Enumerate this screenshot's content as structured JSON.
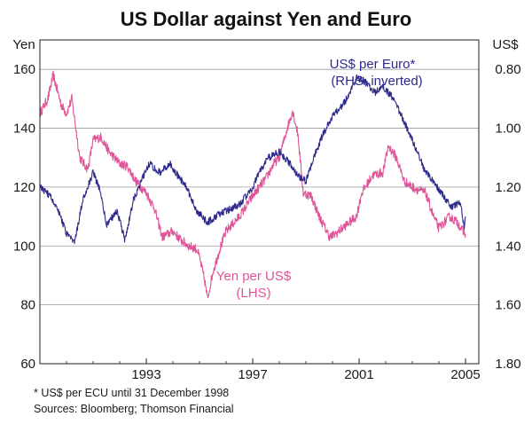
{
  "chart_data": {
    "type": "line",
    "title": "US Dollar against Yen and Euro",
    "left_axis": {
      "unit": "Yen",
      "min": 60,
      "max": 170,
      "ticks": [
        60,
        80,
        100,
        120,
        140,
        160
      ],
      "tick_labels": [
        "60",
        "80",
        "100",
        "120",
        "140",
        "160"
      ]
    },
    "right_axis": {
      "unit": "US$",
      "inverted": true,
      "min": 0.7,
      "max": 1.8,
      "ticks": [
        0.8,
        1.0,
        1.2,
        1.4,
        1.6,
        1.8
      ],
      "tick_labels": [
        "0.80",
        "1.00",
        "1.20",
        "1.40",
        "1.60",
        "1.80"
      ]
    },
    "x_axis": {
      "min": 1989.0,
      "max": 2005.5,
      "ticks": [
        1993,
        1997,
        2001,
        2005
      ],
      "tick_labels": [
        "1993",
        "1997",
        "2001",
        "2005"
      ]
    },
    "grid": "horizontal",
    "series": [
      {
        "name": "Yen per US$",
        "sublabel": "(LHS)",
        "axis": "left",
        "color": "#e0559a",
        "x": [
          1989.0,
          1989.3,
          1989.5,
          1989.8,
          1990.0,
          1990.2,
          1990.5,
          1990.8,
          1991.0,
          1991.3,
          1991.6,
          1992.0,
          1992.3,
          1992.6,
          1993.0,
          1993.3,
          1993.6,
          1994.0,
          1994.3,
          1994.6,
          1994.9,
          1995.0,
          1995.2,
          1995.3,
          1995.5,
          1995.8,
          1996.0,
          1996.5,
          1997.0,
          1997.5,
          1997.8,
          1998.0,
          1998.3,
          1998.5,
          1998.7,
          1998.9,
          1999.2,
          1999.5,
          1999.9,
          2000.1,
          2000.5,
          2000.9,
          2001.1,
          2001.5,
          2001.9,
          2002.1,
          2002.4,
          2002.7,
          2003.0,
          2003.5,
          2003.8,
          2004.0,
          2004.4,
          2004.7,
          2004.9,
          2005.0
        ],
        "values": [
          145,
          150,
          158,
          148,
          145,
          150,
          130,
          126,
          136,
          137,
          132,
          128,
          127,
          122,
          118,
          113,
          103,
          105,
          102,
          100,
          99,
          96,
          88,
          82,
          91,
          100,
          105,
          110,
          117,
          123,
          128,
          130,
          140,
          146,
          138,
          118,
          117,
          110,
          103,
          104,
          107,
          110,
          118,
          124,
          125,
          134,
          130,
          122,
          120,
          118,
          110,
          106,
          110,
          108,
          105,
          104
        ]
      },
      {
        "name": "US$ per Euro*",
        "sublabel": "(RHS, inverted)",
        "axis": "right",
        "color": "#2e2a8c",
        "x": [
          1989.0,
          1989.4,
          1989.7,
          1990.0,
          1990.3,
          1990.6,
          1991.0,
          1991.3,
          1991.5,
          1991.9,
          1992.2,
          1992.5,
          1992.8,
          1993.1,
          1993.5,
          1993.9,
          1994.1,
          1994.5,
          1994.9,
          1995.3,
          1995.6,
          1996.0,
          1996.5,
          1997.0,
          1997.3,
          1997.6,
          1998.0,
          1998.4,
          1998.7,
          1999.0,
          1999.3,
          1999.6,
          2000.0,
          2000.4,
          2000.7,
          2000.9,
          2001.2,
          2001.6,
          2001.9,
          2002.3,
          2002.7,
          2003.0,
          2003.5,
          2003.8,
          2004.1,
          2004.5,
          2004.8,
          2004.95,
          2005.0
        ],
        "values": [
          1.2,
          1.23,
          1.28,
          1.36,
          1.39,
          1.25,
          1.15,
          1.22,
          1.33,
          1.28,
          1.38,
          1.25,
          1.18,
          1.12,
          1.15,
          1.12,
          1.15,
          1.2,
          1.28,
          1.32,
          1.3,
          1.28,
          1.26,
          1.2,
          1.14,
          1.1,
          1.08,
          1.12,
          1.16,
          1.18,
          1.1,
          1.03,
          0.96,
          0.92,
          0.87,
          0.83,
          0.84,
          0.88,
          0.86,
          0.9,
          0.98,
          1.04,
          1.15,
          1.18,
          1.22,
          1.27,
          1.25,
          1.34,
          1.3
        ]
      }
    ],
    "annotations": {
      "euro_label": "US$ per Euro*",
      "euro_sublabel": "(RHS, inverted)",
      "yen_label": "Yen per US$",
      "yen_sublabel": "(LHS)"
    }
  },
  "footnotes": {
    "line1": "*   US$ per ECU until 31 December 1998",
    "line2": "Sources: Bloomberg; Thomson Financial"
  }
}
